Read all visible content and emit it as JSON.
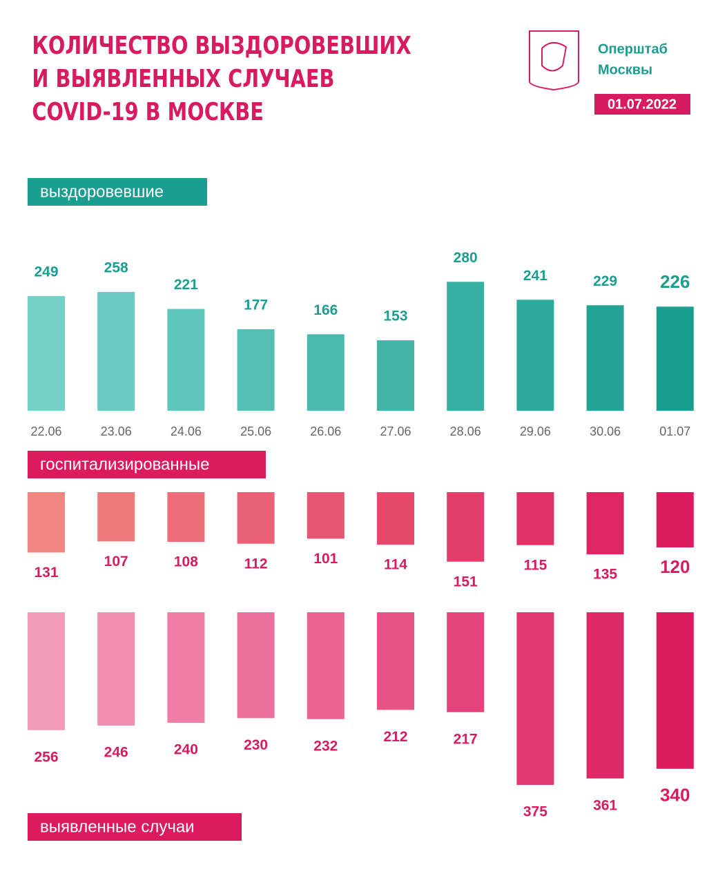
{
  "header": {
    "title": [
      "КОЛИЧЕСТВО ВЫЗДОРОВЕВШИХ",
      "И ВЫЯВЛЕННЫХ СЛУЧАЕВ",
      "COVID-19 В МОСКВЕ"
    ],
    "brand": [
      "Оперштаб",
      "Москвы"
    ],
    "date": "01.07.2022"
  },
  "chart_data": [
    {
      "type": "bar",
      "direction": "up",
      "label": "выздоровевшие",
      "categories": [
        "22.06",
        "23.06",
        "24.06",
        "25.06",
        "26.06",
        "27.06",
        "28.06",
        "29.06",
        "30.06",
        "01.07"
      ],
      "values": [
        249,
        258,
        221,
        177,
        166,
        153,
        280,
        241,
        229,
        226
      ],
      "colors": [
        "#72d0c7",
        "#1a9e8f"
      ],
      "label_color": "#1a9e8f"
    },
    {
      "type": "bar",
      "direction": "down",
      "label": "госпитализированные",
      "values": [
        131,
        107,
        108,
        112,
        101,
        114,
        151,
        115,
        135,
        120
      ],
      "colors": [
        "#f08680",
        "#dc1a5e"
      ],
      "label_color": "#d81b60"
    },
    {
      "type": "bar",
      "direction": "down",
      "label": "выявленные случаи",
      "values": [
        256,
        246,
        240,
        230,
        232,
        212,
        217,
        375,
        361,
        340
      ],
      "colors": [
        "#f39bbb",
        "#dc1a5e"
      ],
      "label_color": "#d81b60"
    }
  ]
}
